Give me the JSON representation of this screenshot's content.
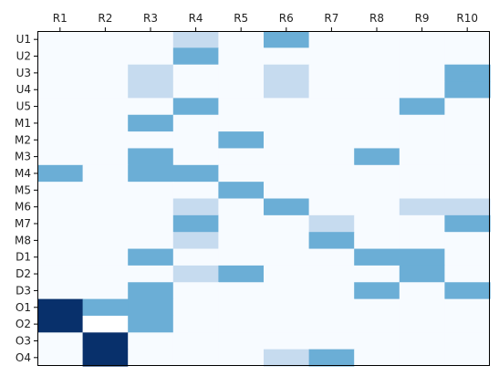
{
  "chart_data": {
    "type": "heatmap",
    "title": "",
    "xlabel": "",
    "ylabel": "",
    "x_position": "top",
    "columns": [
      "R1",
      "R2",
      "R3",
      "R4",
      "R5",
      "R6",
      "R7",
      "R8",
      "R9",
      "R10"
    ],
    "rows": [
      "U1",
      "U2",
      "U3",
      "U4",
      "U5",
      "M1",
      "M2",
      "M3",
      "M4",
      "M5",
      "M6",
      "M7",
      "M8",
      "D1",
      "D2",
      "D3",
      "O1",
      "O2",
      "O3",
      "O4"
    ],
    "values": [
      [
        0,
        0,
        0,
        1,
        0,
        2,
        0,
        0,
        0,
        0
      ],
      [
        0,
        0,
        0,
        2,
        0,
        0,
        0,
        0,
        0,
        0
      ],
      [
        0,
        0,
        1,
        0,
        0,
        1,
        0,
        0,
        0,
        2
      ],
      [
        0,
        0,
        1,
        0,
        0,
        1,
        0,
        0,
        0,
        2
      ],
      [
        0,
        0,
        0,
        2,
        0,
        0,
        0,
        0,
        2,
        0
      ],
      [
        0,
        0,
        2,
        0,
        0,
        0,
        0,
        0,
        0,
        0
      ],
      [
        0,
        0,
        0,
        0,
        2,
        0,
        0,
        0,
        0,
        0
      ],
      [
        0,
        0,
        2,
        0,
        0,
        0,
        0,
        2,
        0,
        0
      ],
      [
        2,
        0,
        2,
        2,
        0,
        0,
        0,
        0,
        0,
        0
      ],
      [
        0,
        0,
        0,
        0,
        2,
        0,
        0,
        0,
        0,
        0
      ],
      [
        0,
        0,
        0,
        1,
        0,
        2,
        0,
        0,
        1,
        1
      ],
      [
        0,
        0,
        0,
        2,
        0,
        0,
        1,
        0,
        0,
        2
      ],
      [
        0,
        0,
        0,
        1,
        0,
        0,
        2,
        0,
        0,
        0
      ],
      [
        0,
        0,
        2,
        0,
        0,
        0,
        0,
        2,
        2,
        0
      ],
      [
        0,
        0,
        0,
        1,
        2,
        0,
        0,
        0,
        2,
        0
      ],
      [
        0,
        0,
        2,
        0,
        0,
        0,
        0,
        2,
        0,
        2
      ],
      [
        4,
        2,
        2,
        0,
        0,
        0,
        0,
        0,
        0,
        0
      ],
      [
        4,
        -1,
        2,
        0,
        0,
        0,
        0,
        0,
        0,
        0
      ],
      [
        0,
        4,
        0,
        0,
        0,
        0,
        0,
        0,
        0,
        0
      ],
      [
        0,
        4,
        0,
        0,
        0,
        1,
        2,
        0,
        0,
        0
      ]
    ],
    "colormap": "Blues",
    "color_scale": {
      "-1": "#ffffff",
      "0": "#f7fbff",
      "1": "#c6dbef",
      "2": "#6baed6",
      "4": "#08306b"
    },
    "grid": false,
    "legend": "none"
  }
}
